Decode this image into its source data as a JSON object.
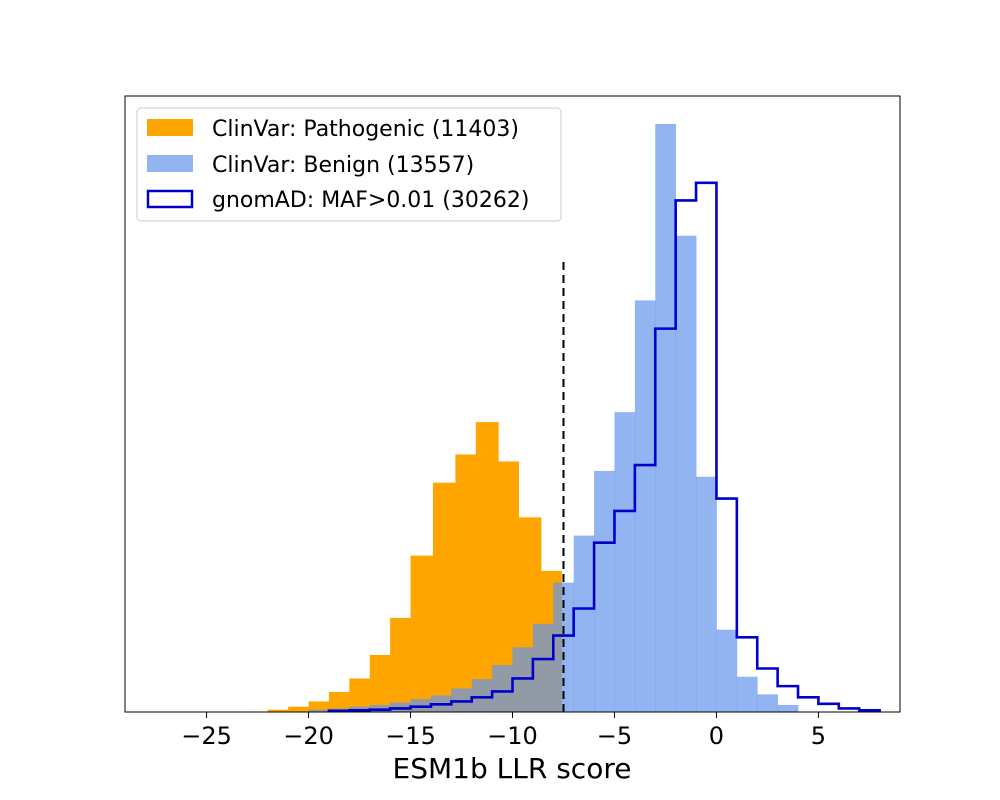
{
  "chart_data": {
    "type": "histogram",
    "title": "",
    "xlabel": "ESM1b LLR score",
    "ylabel": "",
    "xlim": [
      -29,
      9
    ],
    "ylim": [
      0,
      1.0
    ],
    "x_ticks": [
      -25,
      -20,
      -15,
      -10,
      -5,
      0,
      5
    ],
    "y_ticks_visible": false,
    "grid": false,
    "legend_position": "top-left",
    "threshold_line": {
      "x": -7.5,
      "style": "dashed",
      "color": "#000000",
      "ymax": 0.77
    },
    "series": [
      {
        "name": "ClinVar: Pathogenic (11403)",
        "style": "filled",
        "color": "#ffa500",
        "opacity": 1.0,
        "bin_edges": [
          -22.0,
          -21.0,
          -20.0,
          -19.0,
          -18.0,
          -17.0,
          -16.0,
          -15.0,
          -13.9,
          -12.8,
          -11.8,
          -10.7,
          -9.7,
          -8.6,
          -7.6
        ],
        "values": [
          0.004,
          0.009,
          0.018,
          0.034,
          0.057,
          0.097,
          0.16,
          0.266,
          0.39,
          0.438,
          0.493,
          0.426,
          0.331,
          0.24
        ]
      },
      {
        "name": "ClinVar: Benign (13557)",
        "style": "filled",
        "color": "#6495ed",
        "opacity": 0.7,
        "bin_edges": [
          -20.0,
          -19.0,
          -18.0,
          -17.0,
          -16.0,
          -15.0,
          -14.0,
          -13.0,
          -12.0,
          -11.0,
          -10.0,
          -9.0,
          -8.0,
          -7.0,
          -6.0,
          -5.0,
          -4.0,
          -3.0,
          -2.0,
          -1.0,
          0.0,
          1.0,
          2.0,
          3.0,
          4.0
        ],
        "values": [
          0.004,
          0.006,
          0.009,
          0.012,
          0.016,
          0.022,
          0.028,
          0.04,
          0.056,
          0.08,
          0.11,
          0.15,
          0.22,
          0.3,
          0.41,
          0.51,
          0.7,
          1.0,
          0.81,
          0.4,
          0.14,
          0.06,
          0.03,
          0.012
        ]
      },
      {
        "name": "gnomAD: MAF>0.01 (30262)",
        "style": "step",
        "color": "#0000cd",
        "bin_edges": [
          -19.0,
          -18.0,
          -17.0,
          -16.0,
          -15.0,
          -14.0,
          -13.0,
          -12.0,
          -11.0,
          -10.0,
          -9.0,
          -8.0,
          -7.0,
          -6.0,
          -5.0,
          -4.0,
          -3.0,
          -2.0,
          -1.0,
          0.0,
          1.0,
          2.0,
          3.0,
          4.0,
          5.0,
          6.0,
          7.0,
          8.0
        ],
        "values": [
          0.002,
          0.003,
          0.004,
          0.006,
          0.009,
          0.013,
          0.018,
          0.025,
          0.035,
          0.057,
          0.09,
          0.13,
          0.176,
          0.288,
          0.342,
          0.42,
          0.652,
          0.87,
          0.9,
          0.363,
          0.127,
          0.074,
          0.044,
          0.025,
          0.014,
          0.006,
          0.003
        ]
      }
    ]
  }
}
